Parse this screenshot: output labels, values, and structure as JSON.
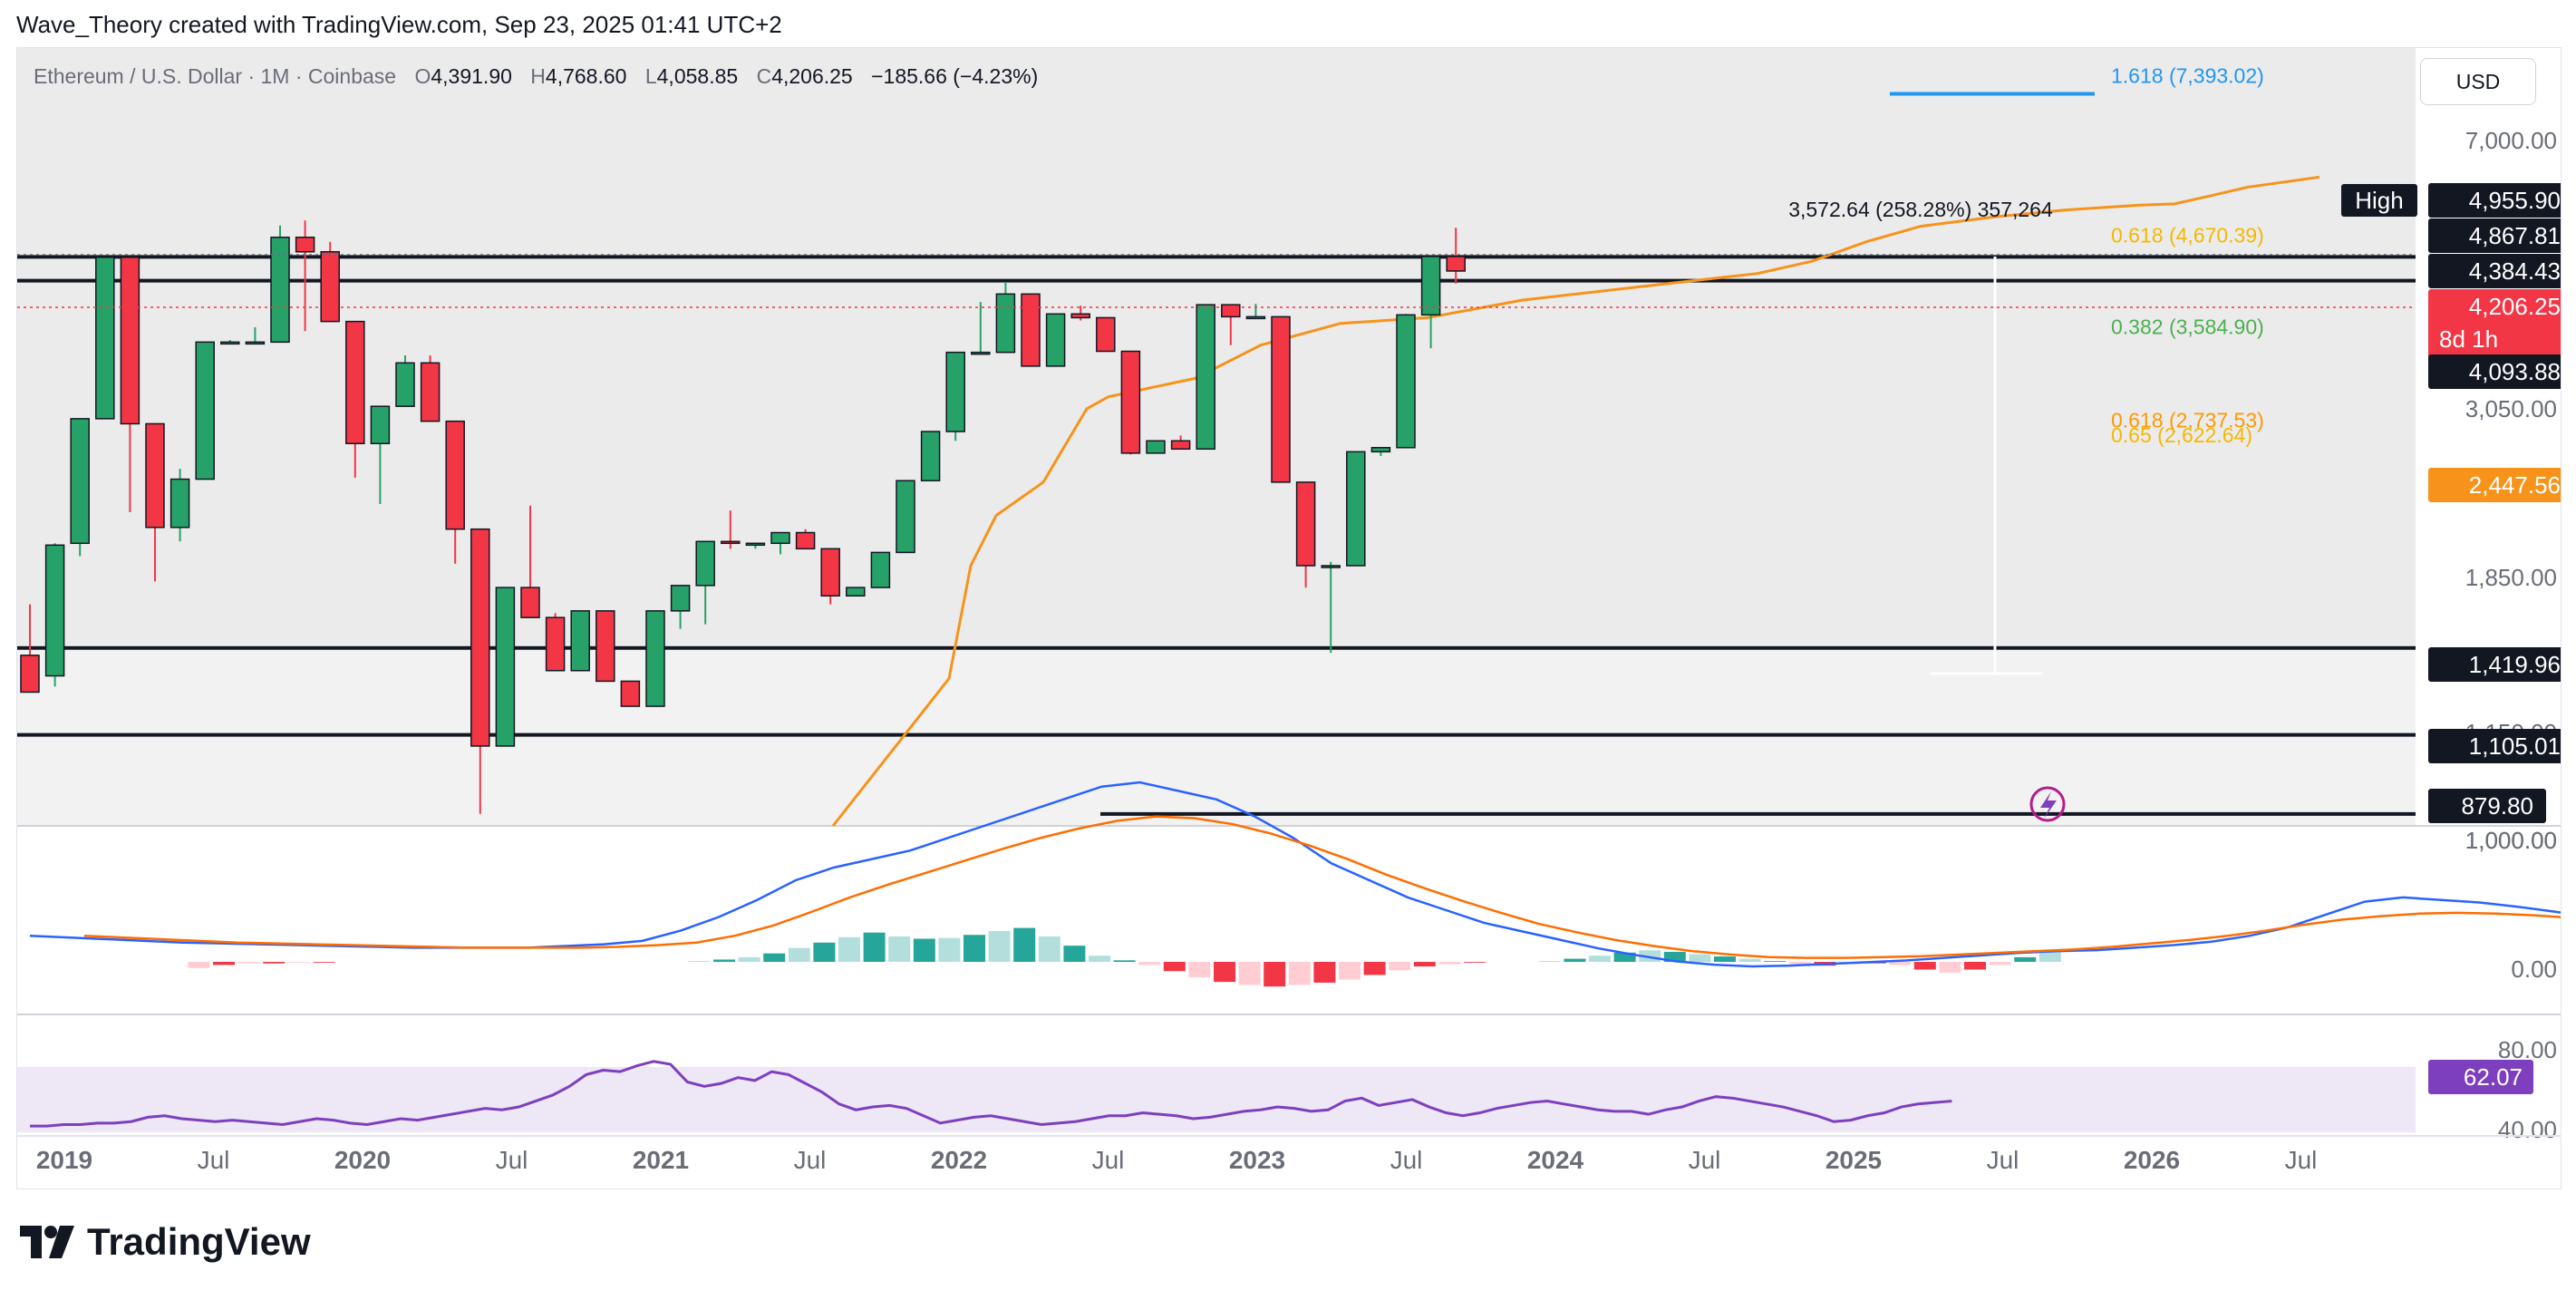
{
  "attribution": "Wave_Theory created with TradingView.com, Sep 23, 2025 01:41 UTC+2",
  "legend": {
    "symbol": "Ethereum / U.S. Dollar · 1M · Coinbase",
    "o_label": "O",
    "o": "4,391.90",
    "h_label": "H",
    "h": "4,768.60",
    "l_label": "L",
    "l": "4,058.85",
    "c_label": "C",
    "c": "4,206.25",
    "change": "−185.66 (−4.23%)"
  },
  "currency": "USD",
  "brand": "TradingView",
  "colors": {
    "up": "#26a269",
    "down": "#f23645",
    "ema": "#f7931a",
    "macd": "#2962ff",
    "signal": "#ff6d00",
    "rsi": "#7e3fbf",
    "fib_blue": "#2196f3",
    "fib_gold": "#f5b800",
    "fib_green": "#4caf50",
    "fib_orange": "#ff9800"
  },
  "chart_data": {
    "type": "candlestick",
    "symbol": "Ethereum / U.S. Dollar",
    "interval": "1M",
    "scale": "log",
    "y_axis_ticks": [
      "7,000.00",
      "3,050.00",
      "1,850.00",
      "1,150.00",
      "1,000.00"
    ],
    "x_axis_ticks": [
      {
        "label": "2019",
        "bold": true
      },
      {
        "label": "Jul",
        "bold": false
      },
      {
        "label": "2020",
        "bold": true
      },
      {
        "label": "Jul",
        "bold": false
      },
      {
        "label": "2021",
        "bold": true
      },
      {
        "label": "Jul",
        "bold": false
      },
      {
        "label": "2022",
        "bold": true
      },
      {
        "label": "Jul",
        "bold": false
      },
      {
        "label": "2023",
        "bold": true
      },
      {
        "label": "Jul",
        "bold": false
      },
      {
        "label": "2024",
        "bold": true
      },
      {
        "label": "Jul",
        "bold": false
      },
      {
        "label": "2025",
        "bold": true
      },
      {
        "label": "Jul",
        "bold": false
      },
      {
        "label": "2026",
        "bold": true
      },
      {
        "label": "Jul",
        "bold": false
      }
    ],
    "start_year": 2019,
    "ylim": [
      850,
      7600
    ],
    "candles": [
      [
        620,
        1390,
        620,
        1390
      ],
      [
        1390,
        1610,
        1390,
        1250
      ],
      [
        1310,
        1920,
        1270,
        1910
      ],
      [
        1920,
        2750,
        1850,
        2750
      ],
      [
        2750,
        4380,
        2750,
        4380
      ],
      [
        4380,
        4380,
        2100,
        2710
      ],
      [
        2710,
        2710,
        1720,
        2010
      ],
      [
        2010,
        2380,
        1930,
        2310
      ],
      [
        2310,
        3330,
        2320,
        3430
      ],
      [
        3430,
        3450,
        3430,
        3430
      ],
      [
        3430,
        3580,
        3430,
        3430
      ],
      [
        3430,
        4800,
        3430,
        4640
      ],
      [
        4640,
        4870,
        3540,
        4450
      ],
      [
        4450,
        4580,
        3640,
        3640
      ],
      [
        3640,
        3640,
        2320,
        2560
      ],
      [
        2560,
        2550,
        2150,
        2850
      ],
      [
        2850,
        3300,
        2990,
        3230
      ],
      [
        3230,
        3300,
        3280,
        2730
      ],
      [
        2730,
        2730,
        1810,
        2000
      ],
      [
        2000,
        2000,
        880,
        1070
      ],
      [
        1070,
        1680,
        1300,
        1690
      ],
      [
        1690,
        2140,
        1690,
        1550
      ],
      [
        1550,
        1570,
        1410,
        1330
      ],
      [
        1330,
        1570,
        1380,
        1580
      ],
      [
        1580,
        1520,
        1320,
        1290
      ],
      [
        1290,
        1200,
        1220,
        1200
      ],
      [
        1200,
        1440,
        1200,
        1580
      ],
      [
        1580,
        1660,
        1500,
        1700
      ],
      [
        1700,
        1700,
        1520,
        1930
      ],
      [
        1930,
        2110,
        1890,
        1920
      ],
      [
        1920,
        1910,
        1890,
        1920
      ],
      [
        1920,
        1940,
        1860,
        1980
      ],
      [
        1980,
        2000,
        1930,
        1890
      ],
      [
        1890,
        1890,
        1610,
        1650
      ],
      [
        1650,
        1660,
        1670,
        1690
      ],
      [
        1690,
        1870,
        1700,
        1870
      ],
      [
        1870,
        2090,
        2040,
        2300
      ],
      [
        2300,
        2390,
        2600,
        2650
      ],
      [
        2650,
        2580,
        2620,
        3330
      ],
      [
        3330,
        3850,
        3310,
        3330
      ],
      [
        3330,
        4080,
        3900,
        3940
      ],
      [
        3940,
        3940,
        3420,
        3200
      ],
      [
        3200,
        3250,
        3550,
        3720
      ],
      [
        3720,
        3810,
        3650,
        3680
      ],
      [
        3680,
        3540,
        3500,
        3340
      ],
      [
        3340,
        3300,
        2480,
        2490
      ],
      [
        2490,
        2550,
        2490,
        2580
      ],
      [
        2580,
        2570,
        2620,
        2520
      ],
      [
        2520,
        3820,
        2520,
        3820
      ],
      [
        3820,
        3820,
        3400,
        3690
      ],
      [
        3690,
        3830,
        3760,
        3690
      ],
      [
        3690,
        3480,
        3430,
        2290
      ],
      [
        2290,
        2140,
        1690,
        1800
      ],
      [
        1800,
        1820,
        1400,
        1800
      ],
      [
        1800,
        2440,
        1800,
        2500
      ],
      [
        2500,
        2500,
        2470,
        2530
      ],
      [
        2530,
        3720,
        2540,
        3710
      ],
      [
        3710,
        4390,
        3370,
        4390
      ],
      [
        4390,
        4770,
        4060,
        4210
      ]
    ],
    "ema": [
      {
        "x": 0,
        "y": 850
      },
      {
        "x": 32,
        "y": 1300
      },
      {
        "x": 38,
        "y": 1800
      },
      {
        "x": 45,
        "y": 2080
      },
      {
        "x": 58,
        "y": 2290
      },
      {
        "x": 70,
        "y": 2830
      },
      {
        "x": 76,
        "y": 2930
      },
      {
        "x": 100,
        "y": 3090
      },
      {
        "x": 118,
        "y": 3400
      },
      {
        "x": 140,
        "y": 3620
      },
      {
        "x": 164,
        "y": 3680
      },
      {
        "x": 190,
        "y": 3870
      },
      {
        "x": 230,
        "y": 4060
      },
      {
        "x": 255,
        "y": 4180
      },
      {
        "x": 270,
        "y": 4330
      },
      {
        "x": 285,
        "y": 4580
      },
      {
        "x": 300,
        "y": 4790
      },
      {
        "x": 320,
        "y": 4920
      },
      {
        "x": 340,
        "y": 5020
      },
      {
        "x": 360,
        "y": 5090
      },
      {
        "x": 370,
        "y": 5110
      },
      {
        "x": 380,
        "y": 5230
      },
      {
        "x": 390,
        "y": 5360
      },
      {
        "x": 410,
        "y": 5520
      }
    ],
    "horizontal_levels": [
      "4,384.43",
      "4,093.88",
      "1,419.96",
      "1,105.01",
      "879.80"
    ],
    "fib_levels": [
      {
        "label": "1.618 (7,393.02)",
        "value": 7393.02
      },
      {
        "label": "0.618 (4,670.39)",
        "value": 4670.39
      },
      {
        "label": "0.382 (3,584.90)",
        "value": 3584.9
      },
      {
        "label": "0.618 (2,737.53)",
        "value": 2737.53
      },
      {
        "label": "0.65 (2,622.64)",
        "value": 2622.64
      }
    ],
    "measure_label": "3,572.64 (258.28%) 357,264",
    "price_tags": {
      "high_label": "High",
      "high": "4,955.90",
      "h1": "4,867.81",
      "h2": "4,384.43",
      "last": "4,206.25",
      "countdown": "8d 1h",
      "h3": "4,093.88",
      "ema": "2,447.56",
      "h4": "1,419.96",
      "h5": "1,105.01",
      "h6": "879.80"
    },
    "macd": {
      "y_axis_ticks": [
        "1,000.00",
        "0.00"
      ],
      "hist": [
        0,
        0,
        0,
        0,
        -80,
        -40,
        -20,
        -20,
        -10,
        -10,
        0,
        0,
        0,
        0,
        0,
        0,
        0,
        0,
        0,
        0,
        0,
        0,
        0,
        0,
        10,
        30,
        60,
        110,
        180,
        250,
        320,
        380,
        330,
        300,
        310,
        350,
        400,
        440,
        330,
        210,
        80,
        20,
        -40,
        -120,
        -200,
        -260,
        -300,
        -320,
        -300,
        -270,
        -230,
        -170,
        -110,
        -60,
        -30,
        -10,
        0,
        0,
        10,
        40,
        80,
        120,
        150,
        130,
        100,
        70,
        40,
        10,
        -30,
        -50,
        -30,
        -20,
        -40,
        -100,
        -140,
        -100,
        -40,
        60,
        130
      ],
      "macd": [
        200,
        180,
        160,
        140,
        120,
        110,
        100,
        90,
        80,
        70,
        60,
        60,
        60,
        60,
        80,
        100,
        140,
        260,
        420,
        620,
        850,
        1000,
        1100,
        1200,
        1350,
        1500,
        1650,
        1800,
        1950,
        2000,
        1900,
        1800,
        1600,
        1350,
        1050,
        850,
        650,
        500,
        350,
        250,
        150,
        50,
        -30,
        -100,
        -140,
        -160,
        -150,
        -130,
        -110,
        -90,
        -60,
        -30,
        0,
        20,
        30,
        60,
        90,
        130,
        200,
        300,
        450,
        600,
        650,
        620,
        590,
        540,
        480,
        410,
        330,
        250,
        200,
        200,
        280,
        470
      ],
      "signal": [
        200,
        180,
        160,
        140,
        120,
        110,
        100,
        90,
        80,
        70,
        60,
        60,
        60,
        60,
        70,
        90,
        120,
        200,
        320,
        480,
        650,
        800,
        940,
        1080,
        1220,
        1350,
        1460,
        1550,
        1600,
        1580,
        1510,
        1400,
        1260,
        1100,
        920,
        760,
        610,
        470,
        340,
        240,
        150,
        80,
        20,
        -20,
        -50,
        -60,
        -60,
        -50,
        -40,
        -20,
        0,
        20,
        40,
        70,
        110,
        150,
        200,
        260,
        330,
        390,
        430,
        460,
        470,
        460,
        440,
        410,
        370,
        330,
        290,
        240,
        200,
        190,
        200,
        260
      ]
    },
    "rsi": {
      "y_axis_ticks": [
        "80.00",
        "40.00"
      ],
      "last": "62.07",
      "values": [
        45,
        45,
        46,
        46,
        47,
        47,
        48,
        51,
        52,
        50,
        49,
        48,
        49,
        48,
        47,
        46,
        48,
        50,
        49,
        47,
        46,
        48,
        50,
        49,
        51,
        53,
        55,
        57,
        56,
        58,
        62,
        66,
        72,
        80,
        83,
        82,
        86,
        89,
        87,
        75,
        72,
        74,
        78,
        76,
        82,
        80,
        74,
        68,
        60,
        56,
        58,
        59,
        57,
        52,
        47,
        49,
        51,
        52,
        50,
        48,
        46,
        47,
        48,
        50,
        52,
        52,
        54,
        53,
        52,
        50,
        51,
        53,
        55,
        56,
        58,
        57,
        55,
        56,
        62,
        64,
        59,
        61,
        63,
        58,
        54,
        52,
        54,
        57,
        59,
        61,
        62,
        60,
        58,
        56,
        55,
        55,
        53,
        56,
        58,
        62,
        65,
        64,
        62,
        60,
        58,
        55,
        52,
        48,
        49,
        52,
        54,
        58,
        60,
        61,
        62
      ]
    }
  }
}
